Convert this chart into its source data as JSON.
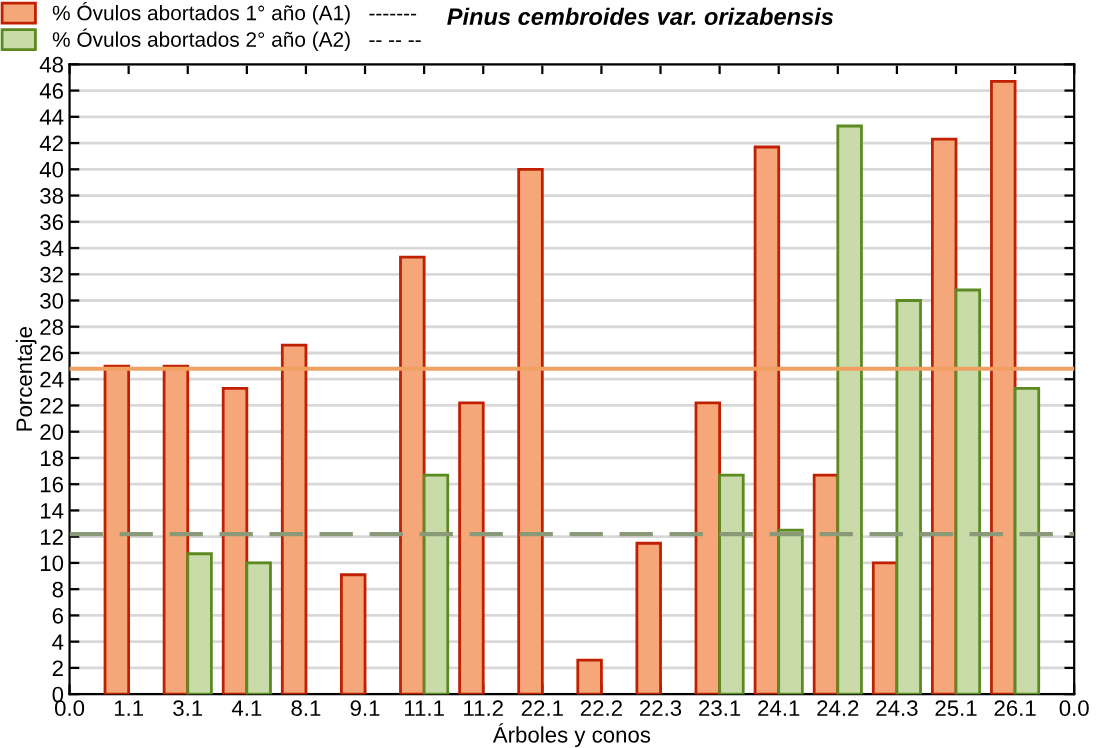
{
  "chart_data": {
    "type": "bar",
    "title": "Pinus cembroides var. orizabensis",
    "xlabel": "Árboles y conos",
    "ylabel": "Porcentaje",
    "categories": [
      "0.0",
      "1.1",
      "3.1",
      "4.1",
      "8.1",
      "9.1",
      "11.1",
      "11.2",
      "22.1",
      "22.2",
      "22.3",
      "23.1",
      "24.1",
      "24.2",
      "24.3",
      "25.1",
      "26.1",
      "0.0"
    ],
    "series": [
      {
        "name": "% Óvulos abortados 1° año (A1)   -------",
        "color": "#f5a77a",
        "values": [
          null,
          25,
          25,
          23.3,
          26.6,
          9.1,
          33.3,
          22.2,
          40,
          2.6,
          11.5,
          22.2,
          41.7,
          16.7,
          10,
          42.3,
          46.7,
          null
        ]
      },
      {
        "name": "% Óvulos abortados 2° año (A2)   -- -- --",
        "color": "#c8dba8",
        "values": [
          null,
          null,
          10.7,
          10,
          null,
          null,
          16.7,
          null,
          null,
          null,
          null,
          16.7,
          12.5,
          43.3,
          30,
          30.8,
          23.3,
          null
        ]
      }
    ],
    "ylim": [
      0,
      48
    ],
    "yticks": [
      0,
      2,
      4,
      6,
      8,
      10,
      12,
      14,
      16,
      18,
      20,
      22,
      24,
      26,
      28,
      30,
      32,
      34,
      36,
      38,
      40,
      42,
      44,
      46,
      48
    ],
    "ref_lines": [
      {
        "axis": "y",
        "value": 24.8,
        "color": "#f0a060",
        "line_style": "solid"
      },
      {
        "axis": "y",
        "value": 12.2,
        "color": "#8a9a78",
        "line_style": "dashed"
      }
    ],
    "grid": "y",
    "legend": "top left"
  }
}
